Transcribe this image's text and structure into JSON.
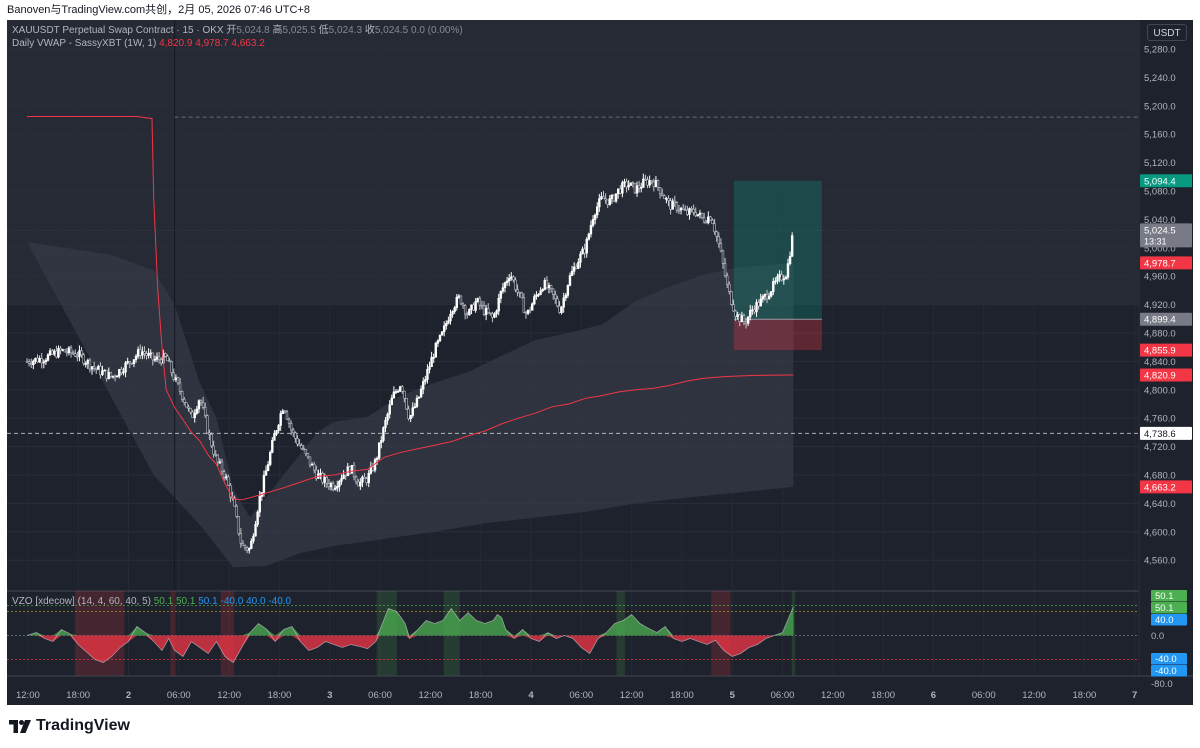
{
  "header": {
    "publisher_line": "Banoven与TradingView.com共创，2月 05, 2026 07:46 UTC+8"
  },
  "legend": {
    "symbol": "XAUUSDT Perpetual Swap Contract · 15 · OKX",
    "o_label": "开",
    "o": "5,024.8",
    "h_label": "高",
    "h": "5,025.5",
    "l_label": "低",
    "l": "5,024.3",
    "c_label": "收",
    "c": "5,024.5",
    "change": "0.0 (0.00%)",
    "vwap_name": "Daily VWAP - SassyXBT (1W, 1)",
    "vwap_v1": "4,820.9",
    "vwap_v2": "4,978.7",
    "vwap_v3": "4,663.2"
  },
  "unit": "USDT",
  "vzo_legend": {
    "name": "VZO [xdecow] (14, 4, 60, 40, 5)",
    "v1": "50.1",
    "v2": "50.1",
    "v3": "50.1",
    "v4": "-40.0",
    "v5": "40.0",
    "v6": "-40.0"
  },
  "footer": {
    "brand": "TradingView"
  },
  "colors": {
    "background": "#1e222d",
    "up": "#ffffff",
    "vwap": "#f23645",
    "band": "#2a2e39",
    "green": "#4caf50",
    "red": "#f23645",
    "blue": "#2196f3",
    "target": "#089981"
  },
  "chart_data": {
    "type": "candlestick",
    "y_axis": {
      "range": [
        4540,
        5310
      ],
      "ticks": [
        "4,560.0",
        "4,600.0",
        "4,640.0",
        "4,680.0",
        "4,720.0",
        "4,760.0",
        "4,800.0",
        "4,840.0",
        "4,880.0",
        "4,920.0",
        "4,960.0",
        "5,000.0",
        "5,040.0",
        "5,080.0",
        "5,120.0",
        "5,160.0",
        "5,200.0",
        "5,240.0",
        "5,280.0"
      ]
    },
    "x_axis": {
      "labels": [
        {
          "label": "12:00",
          "h": -12
        },
        {
          "label": "18:00",
          "h": -6
        },
        {
          "label": "2",
          "h": 0
        },
        {
          "label": "06:00",
          "h": 6
        },
        {
          "label": "12:00",
          "h": 12
        },
        {
          "label": "18:00",
          "h": 18
        },
        {
          "label": "3",
          "h": 24
        },
        {
          "label": "06:00",
          "h": 30
        },
        {
          "label": "12:00",
          "h": 36
        },
        {
          "label": "18:00",
          "h": 42
        },
        {
          "label": "4",
          "h": 48
        },
        {
          "label": "06:00",
          "h": 54
        },
        {
          "label": "12:00",
          "h": 60
        },
        {
          "label": "18:00",
          "h": 66
        },
        {
          "label": "5",
          "h": 72
        },
        {
          "label": "06:00",
          "h": 78
        },
        {
          "label": "12:00",
          "h": 84
        },
        {
          "label": "18:00",
          "h": 90
        },
        {
          "label": "6",
          "h": 96
        },
        {
          "label": "06:00",
          "h": 102
        },
        {
          "label": "12:00",
          "h": 108
        },
        {
          "label": "18:00",
          "h": 114
        },
        {
          "label": "7",
          "h": 120
        }
      ]
    },
    "price_path": [
      [
        -12.1,
        4840
      ],
      [
        -10,
        4845
      ],
      [
        -8,
        4855
      ],
      [
        -6,
        4850
      ],
      [
        -4,
        4830
      ],
      [
        -2,
        4818
      ],
      [
        0,
        4838
      ],
      [
        1.5,
        4855
      ],
      [
        3,
        4842
      ],
      [
        4.5,
        4845
      ],
      [
        5.5,
        4815
      ],
      [
        6.5,
        4790
      ],
      [
        7.5,
        4760
      ],
      [
        8.5,
        4790
      ],
      [
        9.5,
        4740
      ],
      [
        10.5,
        4700
      ],
      [
        11.5,
        4680
      ],
      [
        12.5,
        4640
      ],
      [
        13.5,
        4580
      ],
      [
        14.5,
        4575
      ],
      [
        15.5,
        4640
      ],
      [
        16.5,
        4690
      ],
      [
        17.5,
        4740
      ],
      [
        18.5,
        4780
      ],
      [
        19.5,
        4740
      ],
      [
        20.5,
        4720
      ],
      [
        21.5,
        4700
      ],
      [
        22.5,
        4680
      ],
      [
        23.5,
        4670
      ],
      [
        24.5,
        4665
      ],
      [
        25.5,
        4680
      ],
      [
        26.5,
        4690
      ],
      [
        27.5,
        4668
      ],
      [
        28.5,
        4675
      ],
      [
        29.5,
        4700
      ],
      [
        30.5,
        4748
      ],
      [
        31.5,
        4790
      ],
      [
        32.5,
        4810
      ],
      [
        33.5,
        4760
      ],
      [
        34.5,
        4785
      ],
      [
        35.5,
        4820
      ],
      [
        36.5,
        4855
      ],
      [
        37.5,
        4880
      ],
      [
        38.5,
        4915
      ],
      [
        39.5,
        4930
      ],
      [
        40.5,
        4905
      ],
      [
        41.5,
        4925
      ],
      [
        42.5,
        4910
      ],
      [
        43.5,
        4900
      ],
      [
        44.5,
        4940
      ],
      [
        45.5,
        4965
      ],
      [
        46.5,
        4935
      ],
      [
        47.5,
        4905
      ],
      [
        48.5,
        4930
      ],
      [
        49.5,
        4950
      ],
      [
        50.5,
        4935
      ],
      [
        51.5,
        4912
      ],
      [
        52.5,
        4955
      ],
      [
        53.5,
        4980
      ],
      [
        54.5,
        5000
      ],
      [
        55.5,
        5050
      ],
      [
        56.5,
        5070
      ],
      [
        57.5,
        5065
      ],
      [
        58.5,
        5082
      ],
      [
        59.5,
        5090
      ],
      [
        60.5,
        5082
      ],
      [
        61.5,
        5092
      ],
      [
        62.5,
        5095
      ],
      [
        63.5,
        5080
      ],
      [
        64.5,
        5060
      ],
      [
        65.5,
        5058
      ],
      [
        66.5,
        5048
      ],
      [
        67.5,
        5052
      ],
      [
        68.5,
        5040
      ],
      [
        69.5,
        5045
      ],
      [
        70.5,
        5000
      ],
      [
        71.5,
        4940
      ],
      [
        72.5,
        4905
      ],
      [
        73.5,
        4895
      ],
      [
        74.5,
        4915
      ],
      [
        75.5,
        4925
      ],
      [
        76.5,
        4940
      ],
      [
        77.5,
        4955
      ],
      [
        78.5,
        4965
      ],
      [
        79.3,
        5024.5
      ]
    ],
    "vwap_path": [
      [
        -12.1,
        5185
      ],
      [
        -10,
        5185
      ],
      [
        -6,
        5185
      ],
      [
        -2,
        5185
      ],
      [
        1,
        5185
      ],
      [
        2.8,
        5182
      ],
      [
        3,
        5070
      ],
      [
        3.5,
        4940
      ],
      [
        4,
        4860
      ],
      [
        4.5,
        4800
      ],
      [
        5.5,
        4775
      ],
      [
        6.5,
        4758
      ],
      [
        7.5,
        4740
      ],
      [
        8.5,
        4728
      ],
      [
        9.5,
        4708
      ],
      [
        10.5,
        4695
      ],
      [
        11.5,
        4668
      ],
      [
        12.5,
        4646
      ],
      [
        13.5,
        4645
      ],
      [
        14.5,
        4648
      ],
      [
        16.5,
        4655
      ],
      [
        18.5,
        4662
      ],
      [
        20.5,
        4670
      ],
      [
        22.5,
        4678
      ],
      [
        24.5,
        4680
      ],
      [
        26.5,
        4685
      ],
      [
        28.5,
        4688
      ],
      [
        30.5,
        4705
      ],
      [
        32.5,
        4712
      ],
      [
        34.5,
        4717
      ],
      [
        36.5,
        4722
      ],
      [
        38.5,
        4727
      ],
      [
        40.5,
        4735
      ],
      [
        42.5,
        4742
      ],
      [
        44.5,
        4752
      ],
      [
        46.5,
        4760
      ],
      [
        48.5,
        4767
      ],
      [
        50.5,
        4776
      ],
      [
        52.5,
        4780
      ],
      [
        54.5,
        4788
      ],
      [
        56.5,
        4792
      ],
      [
        58.5,
        4797
      ],
      [
        60.5,
        4800
      ],
      [
        62.5,
        4802
      ],
      [
        64.5,
        4806
      ],
      [
        66.5,
        4812
      ],
      [
        68.5,
        4816
      ],
      [
        70.5,
        4818
      ],
      [
        72,
        4819
      ],
      [
        74,
        4820
      ],
      [
        76,
        4820.5
      ],
      [
        79.3,
        4820.9
      ]
    ],
    "band_upper_path": [
      [
        -12.1,
        5008
      ],
      [
        -2,
        4990
      ],
      [
        3,
        4968
      ],
      [
        5.5,
        4920
      ],
      [
        8.5,
        4810
      ],
      [
        10.5,
        4760
      ],
      [
        12.5,
        4660
      ],
      [
        14.5,
        4620
      ],
      [
        18.5,
        4680
      ],
      [
        22.5,
        4740
      ],
      [
        24.5,
        4755
      ],
      [
        28.5,
        4762
      ],
      [
        32.5,
        4792
      ],
      [
        36.5,
        4810
      ],
      [
        40.5,
        4825
      ],
      [
        44.5,
        4848
      ],
      [
        48.5,
        4870
      ],
      [
        52.5,
        4880
      ],
      [
        56.5,
        4892
      ],
      [
        60.5,
        4925
      ],
      [
        64.5,
        4945
      ],
      [
        68.5,
        4962
      ],
      [
        72.5,
        4972
      ],
      [
        76.5,
        4976
      ],
      [
        79.3,
        4978.7
      ]
    ],
    "band_lower_path": [
      [
        3,
        4680
      ],
      [
        8.5,
        4610
      ],
      [
        12.5,
        4550
      ],
      [
        16.5,
        4552
      ],
      [
        20.5,
        4570
      ],
      [
        24.5,
        4580
      ],
      [
        30.5,
        4590
      ],
      [
        36.5,
        4600
      ],
      [
        42.5,
        4612
      ],
      [
        48.5,
        4620
      ],
      [
        54.5,
        4628
      ],
      [
        60.5,
        4640
      ],
      [
        66.5,
        4648
      ],
      [
        72.5,
        4655
      ],
      [
        79.3,
        4663.2
      ]
    ],
    "horizontal_levels": [
      {
        "price": 5184,
        "style": "dashed",
        "color": "#787b86"
      },
      {
        "price": 4738.6,
        "style": "dashed",
        "color": "#d1d4dc"
      },
      {
        "price": 5024.5,
        "style": "dotted",
        "color": "#434651"
      }
    ],
    "position_tool": {
      "start_h": 72.2,
      "end_h": 82.7,
      "entry": 4899.4,
      "target": 5094.4,
      "stop": 4855.9
    },
    "vertical_line_h": 5.5,
    "price_labels": [
      {
        "price": 5094.4,
        "label": "5,094.4",
        "bg": "#089981",
        "fg": "#ffffff"
      },
      {
        "price": 5024.5,
        "label": "5,024.5",
        "sub": "13:31",
        "bg": "#787b86",
        "fg": "#ffffff"
      },
      {
        "price": 4978.7,
        "label": "4,978.7",
        "bg": "#f23645",
        "fg": "#ffffff"
      },
      {
        "price": 4899.4,
        "label": "4,899.4",
        "bg": "#787b86",
        "fg": "#ffffff"
      },
      {
        "price": 4855.9,
        "label": "4,855.9",
        "bg": "#f23645",
        "fg": "#ffffff"
      },
      {
        "price": 4820.9,
        "label": "4,820.9",
        "bg": "#f23645",
        "fg": "#ffffff"
      },
      {
        "price": 4738.6,
        "label": "4,738.6",
        "bg": "#ffffff",
        "fg": "#131722"
      },
      {
        "price": 4663.2,
        "label": "4,663.2",
        "bg": "#f23645",
        "fg": "#ffffff"
      }
    ],
    "vzo": {
      "range": [
        -80,
        60
      ],
      "ticks": [
        "0.0",
        "-80.0"
      ],
      "levels": [
        50.1,
        40.0,
        0,
        -40.0
      ],
      "path": [
        [
          -12.1,
          0
        ],
        [
          -11,
          5
        ],
        [
          -10,
          -5
        ],
        [
          -9,
          -10
        ],
        [
          -8,
          10
        ],
        [
          -7,
          3
        ],
        [
          -6,
          -15
        ],
        [
          -4,
          -40
        ],
        [
          -3,
          -45
        ],
        [
          -2,
          -35
        ],
        [
          -1,
          -20
        ],
        [
          0,
          -10
        ],
        [
          1,
          15
        ],
        [
          2,
          5
        ],
        [
          3,
          -10
        ],
        [
          4,
          -25
        ],
        [
          4.8,
          -5
        ],
        [
          5.5,
          -25
        ],
        [
          6.5,
          -35
        ],
        [
          7.5,
          -10
        ],
        [
          8.5,
          -20
        ],
        [
          9.5,
          -30
        ],
        [
          10.5,
          -10
        ],
        [
          11.5,
          -35
        ],
        [
          12.5,
          -45
        ],
        [
          13.5,
          -20
        ],
        [
          14.5,
          5
        ],
        [
          15.5,
          20
        ],
        [
          16.5,
          10
        ],
        [
          17.5,
          -10
        ],
        [
          18.5,
          10
        ],
        [
          19.5,
          15
        ],
        [
          20.5,
          -10
        ],
        [
          21.5,
          -25
        ],
        [
          22.5,
          -20
        ],
        [
          23.5,
          -10
        ],
        [
          24.5,
          -15
        ],
        [
          25.5,
          -20
        ],
        [
          26.5,
          -15
        ],
        [
          27.5,
          -18
        ],
        [
          28.5,
          -22
        ],
        [
          29.5,
          -10
        ],
        [
          30,
          10
        ],
        [
          31,
          45
        ],
        [
          32,
          40
        ],
        [
          33,
          20
        ],
        [
          33.5,
          -5
        ],
        [
          34.5,
          10
        ],
        [
          35.5,
          25
        ],
        [
          36.5,
          20
        ],
        [
          37.5,
          25
        ],
        [
          38.5,
          45
        ],
        [
          39.5,
          25
        ],
        [
          40.5,
          38
        ],
        [
          41.5,
          25
        ],
        [
          42.5,
          20
        ],
        [
          43.5,
          25
        ],
        [
          44,
          35
        ],
        [
          44.5,
          30
        ],
        [
          45,
          10
        ],
        [
          46,
          -5
        ],
        [
          47,
          10
        ],
        [
          48,
          -5
        ],
        [
          49,
          -10
        ],
        [
          50,
          5
        ],
        [
          51,
          -5
        ],
        [
          52,
          0
        ],
        [
          53,
          -5
        ],
        [
          54,
          -20
        ],
        [
          55,
          -30
        ],
        [
          56,
          -5
        ],
        [
          57,
          5
        ],
        [
          58,
          20
        ],
        [
          59,
          25
        ],
        [
          60,
          35
        ],
        [
          61,
          20
        ],
        [
          62,
          12
        ],
        [
          63,
          5
        ],
        [
          64,
          15
        ],
        [
          65,
          -5
        ],
        [
          66,
          -10
        ],
        [
          67,
          -5
        ],
        [
          68,
          -10
        ],
        [
          69,
          -15
        ],
        [
          70,
          -8
        ],
        [
          71,
          -25
        ],
        [
          72,
          -35
        ],
        [
          73,
          -30
        ],
        [
          74,
          -20
        ],
        [
          75,
          -15
        ],
        [
          76,
          -5
        ],
        [
          77,
          0
        ],
        [
          78,
          5
        ],
        [
          79.3,
          48
        ]
      ],
      "shade_zones": [
        {
          "h1": -6.4,
          "h2": -0.5,
          "color": "red"
        },
        {
          "h1": 5.0,
          "h2": 5.6,
          "color": "red"
        },
        {
          "h1": 11.0,
          "h2": 12.6,
          "color": "red"
        },
        {
          "h1": 29.6,
          "h2": 32.0,
          "color": "green"
        },
        {
          "h1": 37.6,
          "h2": 39.5,
          "color": "green"
        },
        {
          "h1": 58.2,
          "h2": 59.2,
          "color": "green"
        },
        {
          "h1": 69.5,
          "h2": 71.8,
          "color": "red"
        },
        {
          "h1": 79.1,
          "h2": 79.5,
          "color": "green"
        }
      ],
      "labels": [
        {
          "value": "50.1",
          "bg": "#4caf50"
        },
        {
          "value": "50.1",
          "bg": "#4caf50"
        },
        {
          "value": "40.0",
          "bg": "#2196f3"
        },
        {
          "value": "-40.0",
          "bg": "#2196f3"
        },
        {
          "value": "-40.0",
          "bg": "#2196f3"
        }
      ]
    }
  }
}
